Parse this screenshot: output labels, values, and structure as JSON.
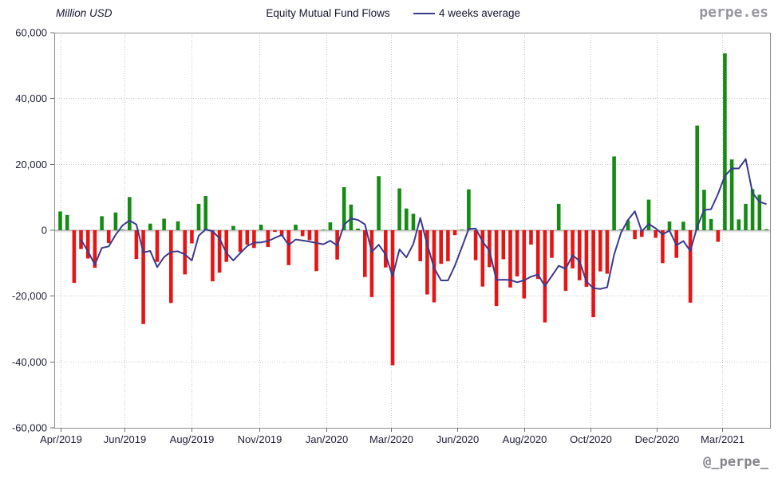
{
  "header": {
    "unit_label": "Million USD",
    "title": "Equity Mutual Fund Flows",
    "legend": {
      "label": "4 weeks average"
    },
    "watermark": "perpe.es"
  },
  "footer": {
    "watermark": "@_perpe_"
  },
  "colors": {
    "positive_bar": "#148c14",
    "negative_bar": "#e51515",
    "average_line": "#3a3a8e",
    "grid": "#c6c6c6",
    "plot_border": "#8f8f8f",
    "zero_line": "#a0a0a0",
    "zero_line_shadow": "#e2e2e2",
    "axis_text": "#20203a",
    "watermark_gray": "#97979d",
    "background": "#ffffff"
  },
  "chart_data": {
    "type": "bar",
    "title": "Equity Mutual Fund Flows",
    "unit": "Million USD",
    "frequency": "weekly",
    "legend_position": "top",
    "grid": "dotted",
    "y_axis": {
      "min": -60000,
      "max": 60000,
      "tick_step": 20000,
      "ticks": [
        {
          "value": 60000,
          "label": "60,000"
        },
        {
          "value": 40000,
          "label": "40,000"
        },
        {
          "value": 20000,
          "label": "20,000"
        },
        {
          "value": 0,
          "label": "0"
        },
        {
          "value": -20000,
          "label": "-20,000"
        },
        {
          "value": -40000,
          "label": "-40,000"
        },
        {
          "value": -60000,
          "label": "-60,000"
        }
      ],
      "grid_values": [
        40000,
        20000,
        -20000,
        -40000
      ]
    },
    "x_axis": {
      "ticks": [
        {
          "label": "Apr/2019",
          "week_index": 0
        },
        {
          "label": "Jun/2019",
          "week_index": 9.3
        },
        {
          "label": "Aug/2019",
          "week_index": 19.0
        },
        {
          "label": "Nov/2019",
          "week_index": 28.8
        },
        {
          "label": "Jan/2020",
          "week_index": 38.4
        },
        {
          "label": "Mar/2020",
          "week_index": 47.8
        },
        {
          "label": "Jun/2020",
          "week_index": 57.3
        },
        {
          "label": "Aug/2020",
          "week_index": 67.0
        },
        {
          "label": "Oct/2020",
          "week_index": 76.6
        },
        {
          "label": "Dec/2020",
          "week_index": 86.1
        },
        {
          "label": "Mar/2021",
          "week_index": 95.6
        }
      ]
    },
    "series": [
      {
        "name": "Equity Mutual Fund Flows",
        "type": "bar",
        "values": [
          5700,
          4650,
          -16000,
          -5700,
          -8600,
          -11400,
          4250,
          -3900,
          5400,
          200,
          10100,
          -8750,
          -28500,
          2000,
          -9600,
          3500,
          -22100,
          2700,
          -13400,
          -4000,
          8000,
          10400,
          -15500,
          -12900,
          -9600,
          1300,
          -6600,
          -4400,
          -5400,
          1700,
          -5100,
          -500,
          -1800,
          -10600,
          1700,
          -1800,
          -3000,
          -12400,
          200,
          2400,
          -8900,
          13100,
          7800,
          500,
          -14200,
          -20300,
          16400,
          -11300,
          -41000,
          12700,
          6600,
          5000,
          -9400,
          -19500,
          -21900,
          -10200,
          -9400,
          -1500,
          200,
          12400,
          -9100,
          -17100,
          -11200,
          -23000,
          -8800,
          -17400,
          -14000,
          -20700,
          -4350,
          -14800,
          -28000,
          -8400,
          8000,
          -18400,
          -11600,
          -15200,
          -17200,
          -26400,
          -12500,
          -13200,
          22400,
          300,
          3000,
          -2700,
          -2000,
          9300,
          -2300,
          -10000,
          2650,
          -8400,
          2600,
          -22000,
          31800,
          12300,
          3400,
          -3500,
          53700,
          21500,
          3300,
          8000,
          12500,
          10800,
          300
        ]
      },
      {
        "name": "4 weeks average",
        "type": "line",
        "derived_from": "trailing 4-week moving average of the weekly bar values",
        "window": 4
      }
    ]
  }
}
